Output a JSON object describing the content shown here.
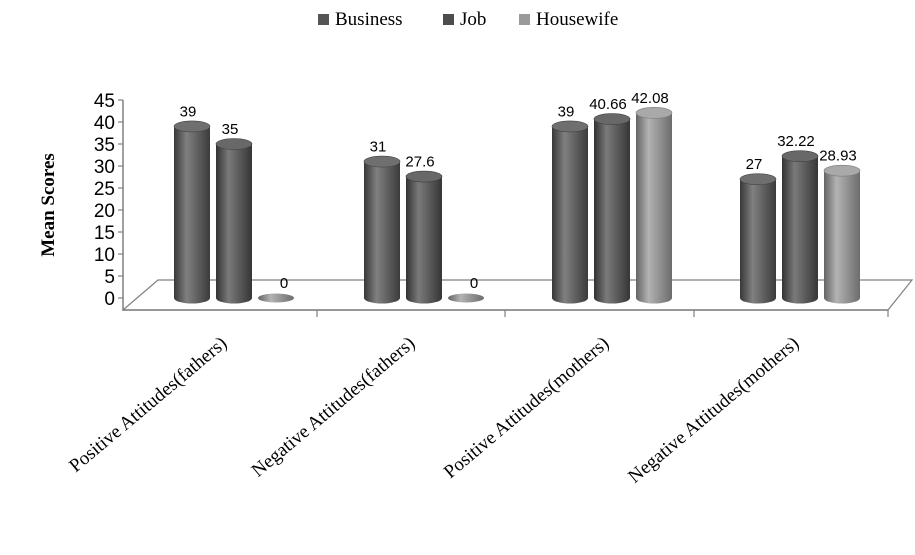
{
  "chart_data": {
    "type": "bar",
    "style": "3d-cylinder",
    "title": "",
    "xlabel": "",
    "ylabel": "Mean Scores",
    "ylim": [
      0,
      45
    ],
    "yticks": [
      0,
      5,
      10,
      15,
      20,
      25,
      30,
      35,
      40,
      45
    ],
    "ytick_labels": [
      "0",
      "5",
      "10",
      "15",
      "20",
      "25",
      "30",
      "35",
      "40",
      "45"
    ],
    "categories": [
      "Positive Attitudes(fathers)",
      "Negative Attitudes(fathers)",
      "Positive Attitudes(mothers)",
      "Negative Attitudes(mothers)"
    ],
    "series": [
      {
        "name": "Business",
        "color": "#555555",
        "values": [
          39,
          31,
          39,
          27
        ]
      },
      {
        "name": "Job",
        "color": "#4d4d4d",
        "values": [
          35,
          27.6,
          40.66,
          32.22
        ]
      },
      {
        "name": "Housewife",
        "color": "#9a9a9a",
        "values": [
          0,
          0,
          42.08,
          28.93
        ]
      }
    ],
    "data_labels": [
      [
        "39",
        "31",
        "39",
        "27"
      ],
      [
        "35",
        "27.6",
        "40.66",
        "32.22"
      ],
      [
        "0",
        "0",
        "42.08",
        "28.93"
      ]
    ],
    "legend_position": "top-center",
    "grid": false
  }
}
